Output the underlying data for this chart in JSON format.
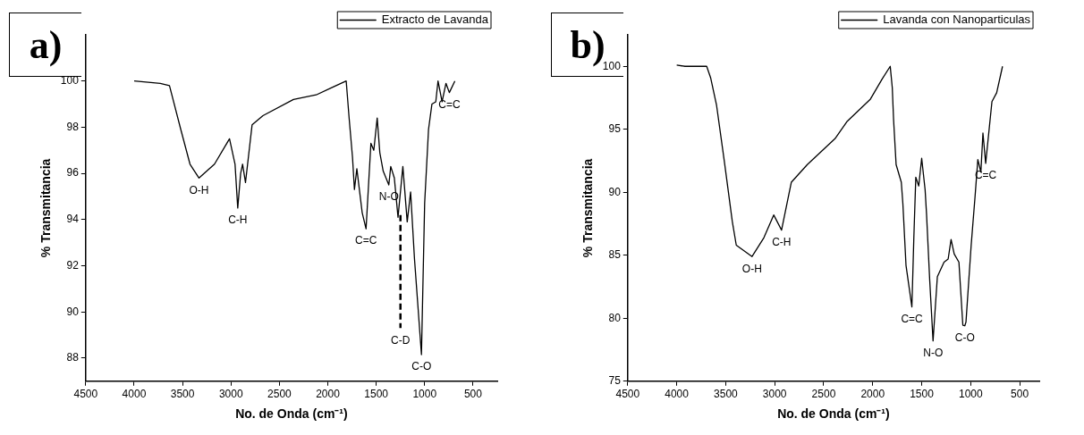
{
  "chart_data": [
    {
      "type": "line",
      "title": "a)",
      "xlabel": "No. de Onda (cm⁻¹)",
      "ylabel": "% Transmitancia",
      "xlim": [
        4500,
        250
      ],
      "xticks": [
        4500,
        4000,
        3500,
        3000,
        2500,
        2000,
        1500,
        1000,
        500
      ],
      "ylim": [
        87,
        102
      ],
      "yticks": [
        88,
        90,
        92,
        94,
        96,
        98,
        100
      ],
      "grid": false,
      "legend": "top right",
      "marker": "none",
      "series": [
        {
          "name": "Extracto de Lavanda",
          "color": "#000000",
          "x": [
            4000,
            3730,
            3635,
            3518,
            3423,
            3330,
            3170,
            3015,
            2958,
            2930,
            2900,
            2880,
            2850,
            2782,
            2670,
            2355,
            2120,
            1965,
            1810,
            1780,
            1745,
            1725,
            1700,
            1645,
            1605,
            1555,
            1525,
            1490,
            1463,
            1428,
            1370,
            1350,
            1313,
            1275,
            1225,
            1180,
            1145,
            1105,
            1033,
            1000,
            960,
            925,
            885,
            862,
            820,
            780,
            745,
            688
          ],
          "values": [
            100,
            99.9,
            99.8,
            97.9,
            96.4,
            95.8,
            96.4,
            97.5,
            96.4,
            94.5,
            96,
            96.4,
            95.6,
            98.1,
            98.5,
            99.2,
            99.4,
            99.7,
            100,
            98.4,
            96.7,
            95.3,
            96.2,
            94.3,
            93.6,
            97.3,
            97,
            98.4,
            96.9,
            96.1,
            95.5,
            96.3,
            95.8,
            94.1,
            96.3,
            93.9,
            95.2,
            92.3,
            88.15,
            94.7,
            97.9,
            99,
            99.1,
            100,
            99.1,
            99.9,
            99.5,
            100
          ]
        },
        {
          "type": "line",
          "line_style": "dashed",
          "color": "#000000",
          "x": [
            1250,
            1250
          ],
          "values": [
            94.2,
            89.3
          ]
        }
      ],
      "annotations": [
        {
          "text": "O-H",
          "x": 3330,
          "y": 95.8
        },
        {
          "text": "C-H",
          "x": 2930,
          "y": 94.5
        },
        {
          "text": "C=C",
          "x": 1605,
          "y": 93.6
        },
        {
          "text": "N-O",
          "x": 1370,
          "y": 95.5
        },
        {
          "text": "C-D",
          "x": 1250,
          "y": 89.3
        },
        {
          "text": "C-O",
          "x": 1033,
          "y": 88.15
        },
        {
          "text": "C=C",
          "x": 745,
          "y": 99.5
        }
      ]
    },
    {
      "type": "line",
      "title": "b)",
      "xlabel": "No. de Onda (cm⁻¹)",
      "ylabel": "% Transmitancia",
      "xlim": [
        4500,
        300
      ],
      "xticks": [
        4500,
        4000,
        3500,
        3000,
        2500,
        2000,
        1500,
        1000,
        500
      ],
      "ylim": [
        75,
        102.5
      ],
      "yticks": [
        75,
        80,
        85,
        90,
        95,
        100
      ],
      "grid": false,
      "legend": "top right",
      "marker": "none",
      "series": [
        {
          "name": "Lavanda con Nanoparticulas",
          "color": "#000000",
          "x": [
            4000,
            3916,
            3694,
            3654,
            3593,
            3513,
            3433,
            3392,
            3231,
            3110,
            3010,
            2930,
            2830,
            2667,
            2385,
            2264,
            2023,
            1903,
            1821,
            1800,
            1787,
            1761,
            1708,
            1692,
            1660,
            1600,
            1580,
            1560,
            1530,
            1500,
            1465,
            1450,
            1418,
            1384,
            1340,
            1272,
            1230,
            1200,
            1168,
            1120,
            1080,
            1060,
            1048,
            995,
            955,
            927,
            896,
            875,
            847,
            783,
            735,
            675
          ],
          "values": [
            100.1,
            100,
            100,
            99.1,
            96.9,
            92.4,
            87.7,
            85.8,
            84.9,
            86.4,
            88.2,
            87,
            90.8,
            92.2,
            94.25,
            95.6,
            97.4,
            99,
            100,
            98.3,
            95.8,
            92.2,
            90.8,
            89.1,
            84.2,
            80.9,
            86.4,
            91.2,
            90.5,
            92.7,
            90.2,
            88.2,
            83,
            78.2,
            83.3,
            84.45,
            84.7,
            86.25,
            85.1,
            84.45,
            79.45,
            79.4,
            79.7,
            85.8,
            89.7,
            92.6,
            91.6,
            94.7,
            92.3,
            97.2,
            97.9,
            100
          ]
        }
      ],
      "annotations": [
        {
          "text": "O-H",
          "x": 3231,
          "y": 84.9
        },
        {
          "text": "C-H",
          "x": 2930,
          "y": 87
        },
        {
          "text": "C=C",
          "x": 1600,
          "y": 80.9
        },
        {
          "text": "N-O",
          "x": 1384,
          "y": 78.2
        },
        {
          "text": "C-O",
          "x": 1060,
          "y": 79.4
        },
        {
          "text": "C=C",
          "x": 847,
          "y": 92.3
        }
      ]
    }
  ]
}
